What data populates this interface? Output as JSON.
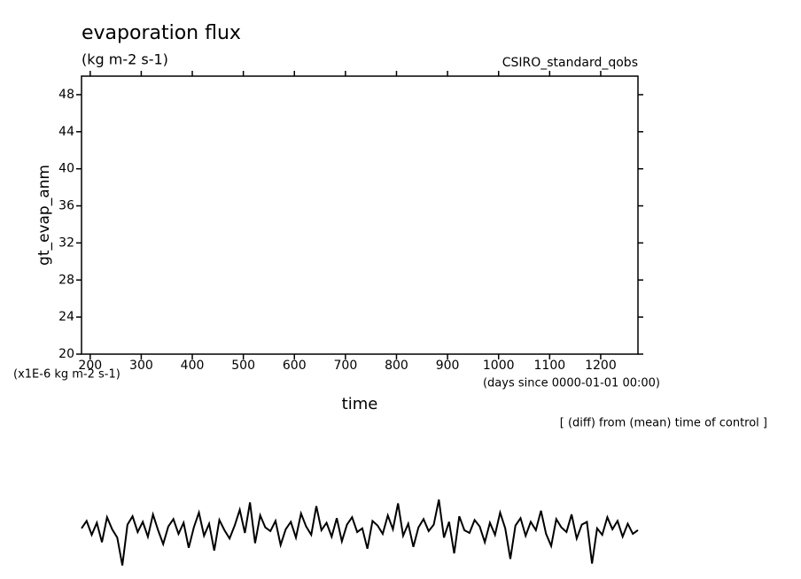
{
  "chart_data": {
    "type": "line",
    "title": "evaporation flux",
    "subtitle": "(kg m-2 s-1)",
    "experiment": "CSIRO_standard_qobs",
    "y_label": "gt_evap_anm",
    "y_units": "(x1E-6 kg m-2 s-1)",
    "x_label": "time",
    "x_units": "(days since 0000-01-01 00:00)",
    "note": "[ (diff) from (mean) time of control ]",
    "xlim": [
      183,
      1273
    ],
    "ylim": [
      20,
      50
    ],
    "xticks": [
      200,
      300,
      400,
      500,
      600,
      700,
      800,
      900,
      1000,
      1100,
      1200
    ],
    "yticks": [
      20,
      24,
      28,
      32,
      36,
      40,
      44,
      48
    ],
    "x": [
      183,
      193,
      203,
      213,
      223,
      233,
      243,
      253,
      263,
      273,
      283,
      293,
      303,
      313,
      323,
      333,
      343,
      353,
      363,
      373,
      383,
      393,
      403,
      413,
      423,
      433,
      443,
      453,
      463,
      473,
      483,
      493,
      503,
      513,
      523,
      533,
      543,
      553,
      563,
      573,
      583,
      593,
      603,
      613,
      623,
      633,
      643,
      653,
      663,
      673,
      683,
      693,
      703,
      713,
      723,
      733,
      743,
      753,
      763,
      773,
      783,
      793,
      803,
      813,
      823,
      833,
      843,
      853,
      863,
      873,
      883,
      893,
      903,
      913,
      923,
      933,
      943,
      953,
      963,
      973,
      983,
      993,
      1003,
      1013,
      1023,
      1033,
      1043,
      1053,
      1063,
      1073,
      1083,
      1093,
      1103,
      1113,
      1123,
      1133,
      1143,
      1153,
      1163,
      1173,
      1183,
      1193,
      1203,
      1213,
      1223,
      1233,
      1243,
      1253,
      1263,
      1273
    ],
    "series": [
      {
        "color": "#000000",
        "values": [
          1.2,
          2.0,
          0.5,
          1.8,
          -0.3,
          2.4,
          1.1,
          0.2,
          -2.8,
          1.6,
          2.5,
          0.8,
          1.9,
          0.3,
          2.7,
          1.0,
          -0.5,
          1.4,
          2.2,
          0.6,
          1.8,
          -0.9,
          1.3,
          2.9,
          0.4,
          1.7,
          -1.2,
          2.1,
          1.0,
          0.1,
          1.5,
          3.2,
          0.7,
          4.0,
          -0.4,
          2.6,
          1.3,
          0.9,
          2.0,
          -0.6,
          1.1,
          1.9,
          0.2,
          2.8,
          1.4,
          0.5,
          3.6,
          1.0,
          1.8,
          0.3,
          2.3,
          -0.2,
          1.6,
          2.4,
          0.8,
          1.2,
          -1.0,
          2.0,
          1.5,
          0.6,
          2.6,
          1.1,
          3.9,
          0.4,
          1.7,
          -0.8,
          1.3,
          2.2,
          0.9,
          1.6,
          4.3,
          0.2,
          1.9,
          -1.5,
          2.5,
          1.0,
          0.7,
          2.1,
          1.4,
          -0.3,
          1.8,
          0.5,
          2.9,
          1.2,
          -2.1,
          1.5,
          2.3,
          0.4,
          1.9,
          1.0,
          3.1,
          0.6,
          -0.7,
          2.2,
          1.3,
          0.8,
          2.7,
          0.1,
          1.6,
          1.9,
          -2.6,
          1.2,
          0.5,
          2.4,
          1.1,
          2.0,
          0.3,
          1.7,
          0.6,
          1.0
        ]
      }
    ]
  }
}
